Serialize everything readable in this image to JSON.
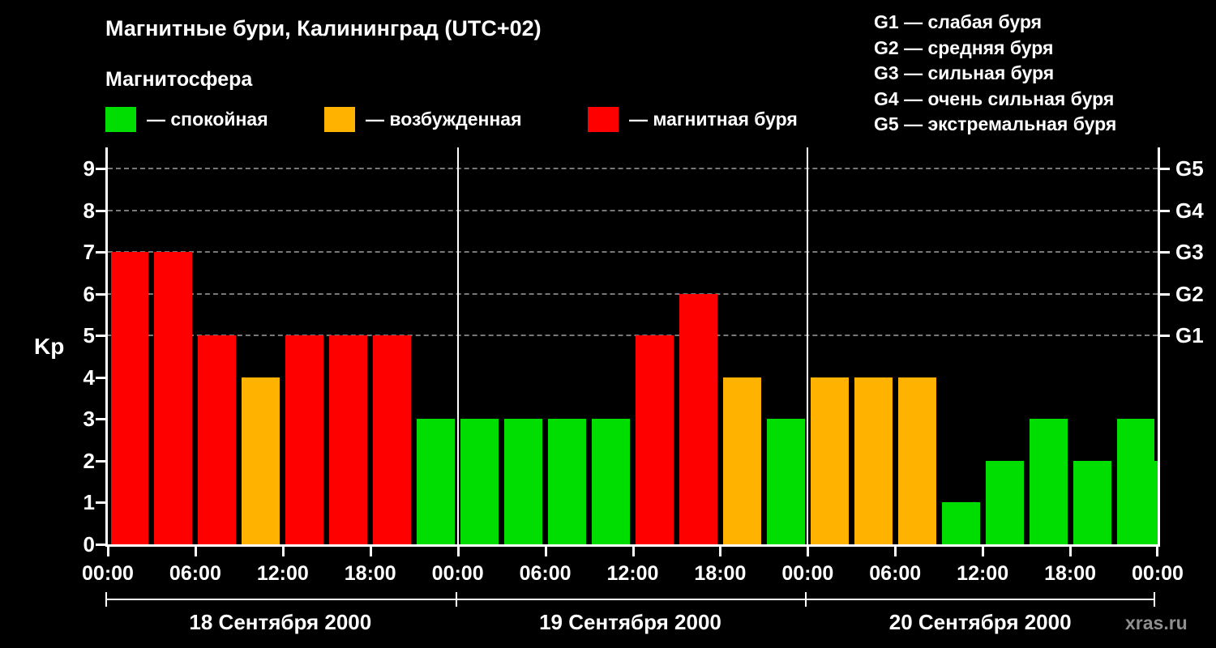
{
  "title": "Магнитные бури, Калининград (UTC+02)",
  "subtitle": "Магнитосфера",
  "ylabel": "Kp",
  "watermark": "xras.ru",
  "legend": [
    {
      "label": "— спокойная",
      "color": "#00dd00"
    },
    {
      "label": "— возбужденная",
      "color": "#ffb300"
    },
    {
      "label": "— магнитная буря",
      "color": "#ff0000"
    }
  ],
  "g_legend": [
    "G1 — слабая буря",
    "G2 — средняя буря",
    "G3 — сильная буря",
    "G4 — очень сильная буря",
    "G5 — экстремальная буря"
  ],
  "chart_data": {
    "type": "bar",
    "title": "Магнитные бури, Калининград (UTC+02)",
    "xlabel": "",
    "ylabel": "Kp",
    "ylim": [
      0,
      9.5
    ],
    "grid": "dashed-horizontal-at-storm-levels",
    "grid_levels": [
      5,
      6,
      7,
      8,
      9
    ],
    "y_ticks": [
      0,
      1,
      2,
      3,
      4,
      5,
      6,
      7,
      8,
      9
    ],
    "right_ticks": [
      {
        "value": 5,
        "label": "G1"
      },
      {
        "value": 6,
        "label": "G2"
      },
      {
        "value": 7,
        "label": "G3"
      },
      {
        "value": 8,
        "label": "G4"
      },
      {
        "value": 9,
        "label": "G5"
      }
    ],
    "time_ticks": [
      "00:00",
      "06:00",
      "12:00",
      "18:00"
    ],
    "final_tick": "00:00",
    "interval_hours": 3,
    "days": [
      {
        "date": "18 Сентября 2000",
        "values": [
          7,
          7,
          5,
          4,
          5,
          5,
          5,
          3
        ]
      },
      {
        "date": "19 Сентября 2000",
        "values": [
          3,
          3,
          3,
          3,
          5,
          6,
          4,
          3
        ]
      },
      {
        "date": "20 Сентября 2000",
        "values": [
          4,
          4,
          4,
          1,
          2,
          3,
          2,
          3
        ]
      }
    ],
    "partial_next_value": 2,
    "colors": {
      "quiet": "#00dd00",
      "excited": "#ffb300",
      "storm": "#ff0000"
    },
    "color_rules": {
      "quiet": "Kp <= 3",
      "excited": "Kp = 4",
      "storm": "Kp >= 5"
    }
  }
}
